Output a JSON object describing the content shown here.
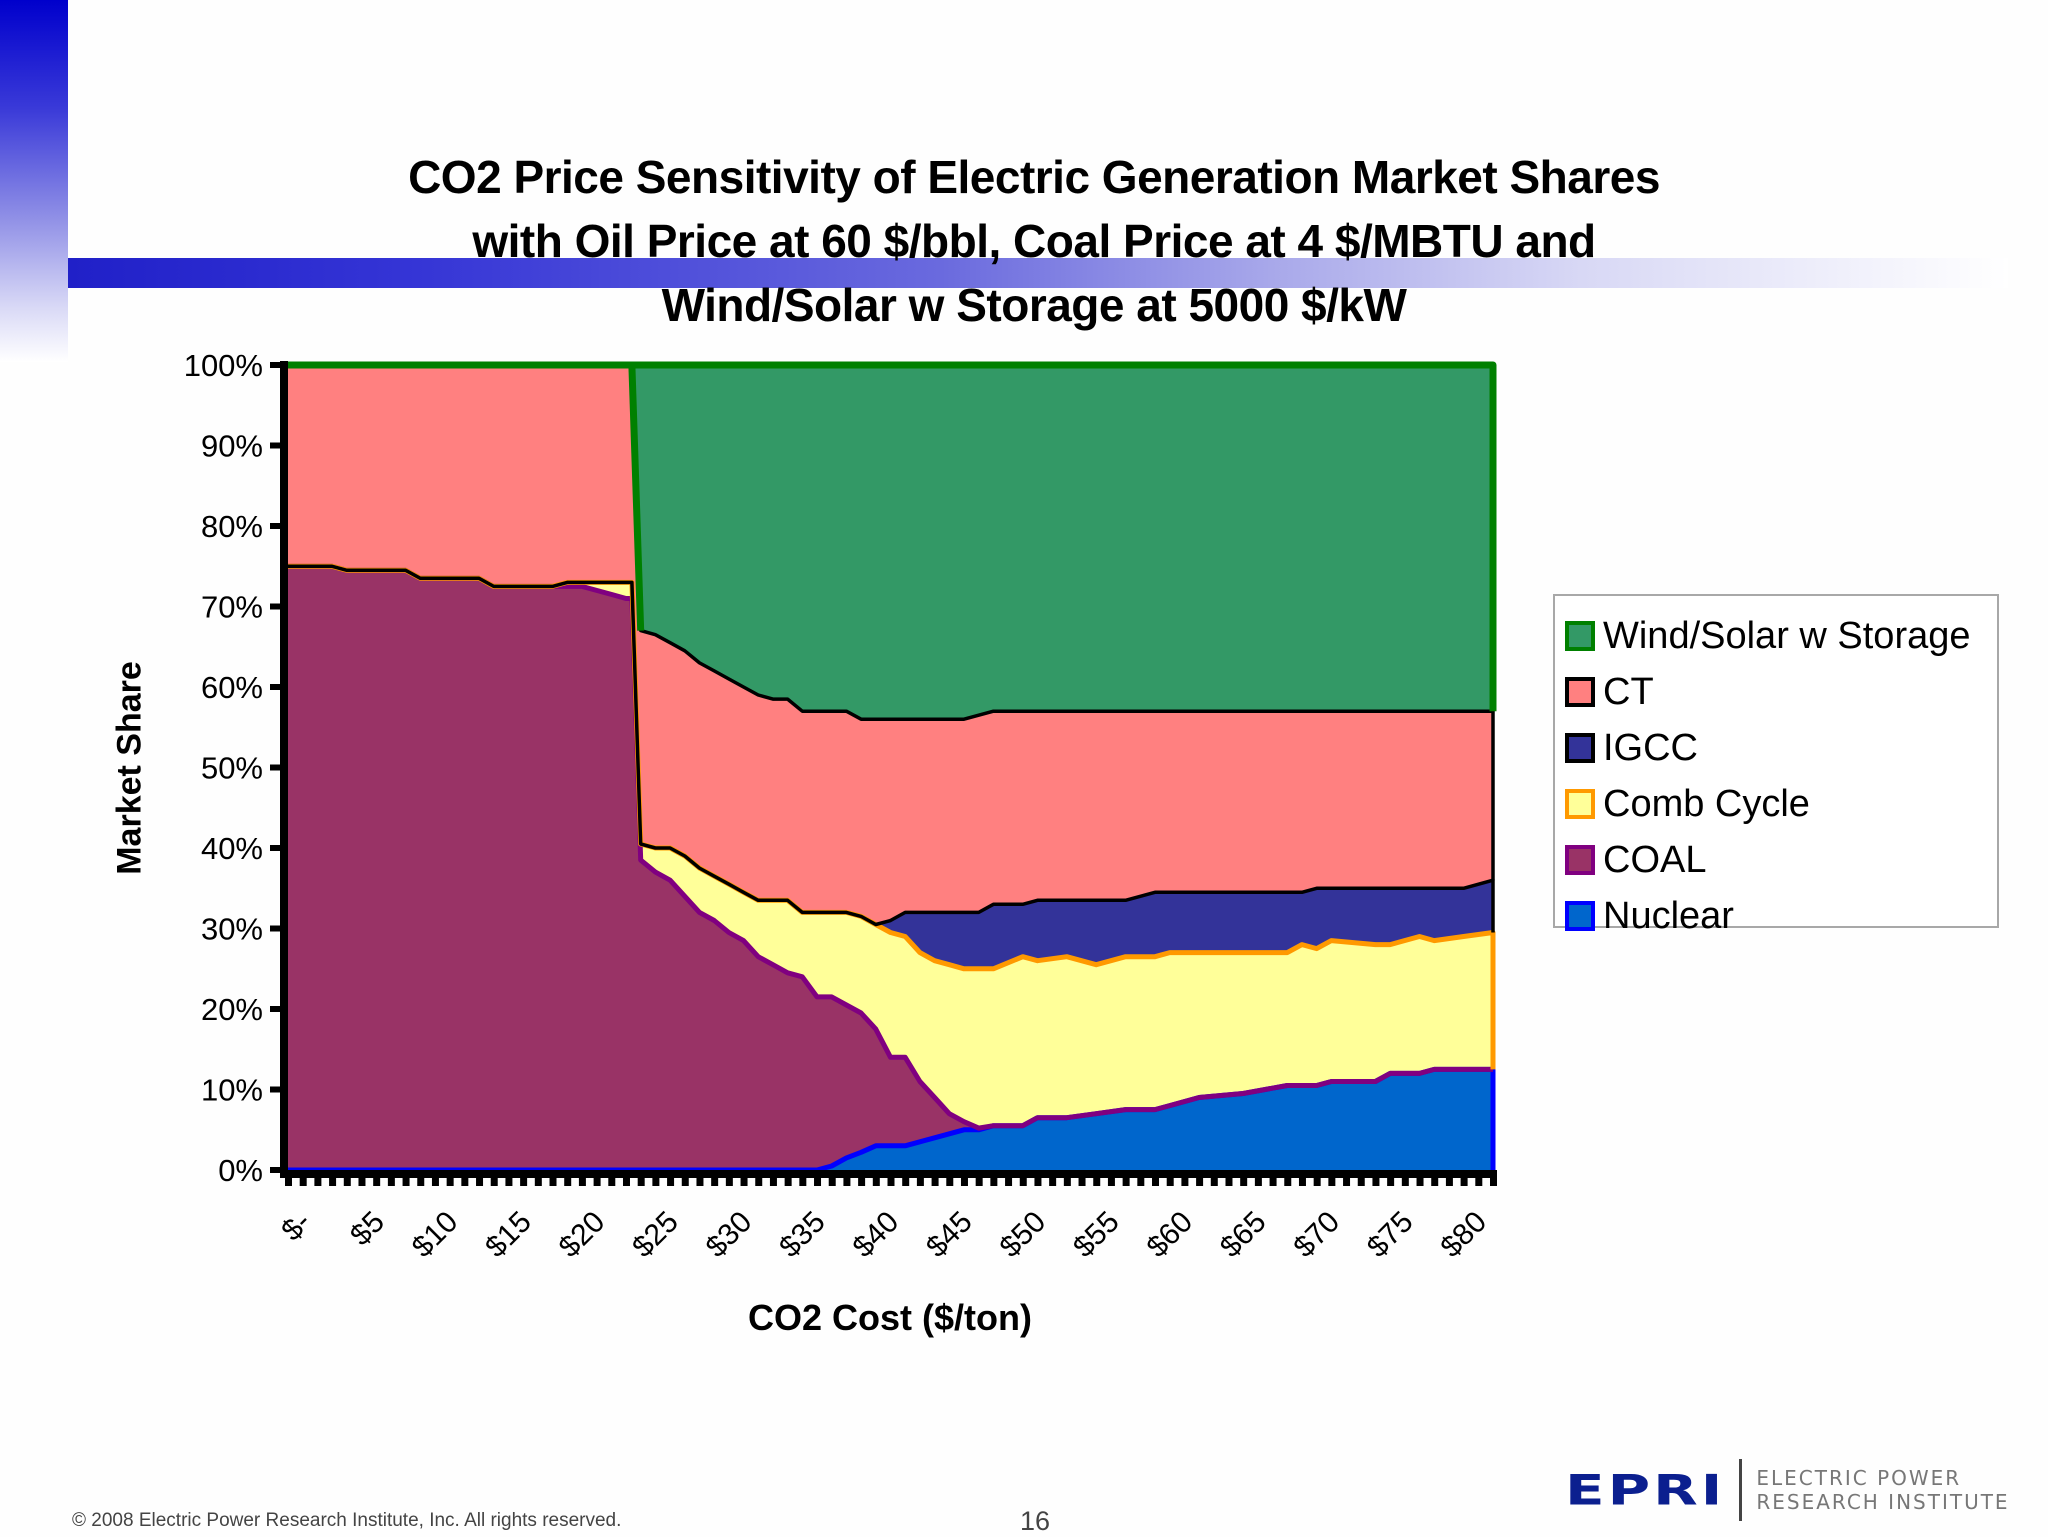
{
  "slide": {
    "footer": "© 2008 Electric Power Research Institute, Inc. All rights reserved.",
    "page_number": "16",
    "logo": {
      "mark": "EPRI",
      "line1": "ELECTRIC POWER",
      "line2": "RESEARCH INSTITUTE"
    }
  },
  "chart_data": {
    "type": "area",
    "stacked": true,
    "title": [
      "CO2 Price Sensitivity of Electric Generation Market Shares",
      "with Oil Price at 60 $/bbl, Coal Price at 4 $/MBTU and",
      "Wind/Solar w Storage at 5000 $/kW"
    ],
    "xlabel": "CO2 Cost ($/ton)",
    "ylabel": "Market Share",
    "xlim": [
      0,
      82
    ],
    "ylim": [
      0,
      100
    ],
    "y_ticks": [
      "0%",
      "10%",
      "20%",
      "30%",
      "40%",
      "50%",
      "60%",
      "70%",
      "80%",
      "90%",
      "100%"
    ],
    "x_tick_labels": [
      "$-",
      "$5",
      "$10",
      "$15",
      "$20",
      "$25",
      "$30",
      "$35",
      "$40",
      "$45",
      "$50",
      "$55",
      "$60",
      "$65",
      "$70",
      "$75",
      "$80"
    ],
    "x_tick_values": [
      0,
      5,
      10,
      15,
      20,
      25,
      30,
      35,
      40,
      45,
      50,
      55,
      60,
      65,
      70,
      75,
      80
    ],
    "legend_position": "right",
    "x": [
      0,
      3,
      4,
      8,
      9,
      13,
      14,
      18,
      19,
      20,
      21,
      22,
      23,
      23.4,
      24,
      25,
      26,
      27,
      28,
      29,
      30,
      31,
      32,
      33,
      34,
      35,
      36,
      37,
      38,
      39,
      40,
      41,
      42,
      43,
      44,
      45,
      46,
      47,
      48,
      50,
      51,
      53,
      55,
      57,
      59,
      60,
      62,
      65,
      68,
      69,
      70,
      71,
      74,
      75,
      77,
      78,
      80,
      82
    ],
    "series": [
      {
        "name": "Nuclear",
        "fill": "#0066cc",
        "stroke": "#0000ff",
        "values": [
          0,
          0,
          0,
          0,
          0,
          0,
          0,
          0,
          0,
          0,
          0,
          0,
          0,
          0,
          0,
          0,
          0,
          0,
          0,
          0,
          0,
          0,
          0,
          0,
          0,
          0,
          0,
          0.5,
          1.5,
          2.2,
          3,
          3,
          3,
          3.5,
          4,
          4.5,
          5,
          5,
          5.5,
          5.5,
          6.5,
          6.5,
          7,
          7.5,
          7.5,
          8,
          9,
          9.5,
          10.5,
          10.5,
          10.5,
          11,
          11,
          12,
          12,
          12.5,
          12.5,
          12.5
        ]
      },
      {
        "name": "COAL",
        "fill": "#993366",
        "stroke": "#800080",
        "values": [
          75,
          75,
          74.5,
          74.5,
          73.5,
          73.5,
          72.5,
          72.5,
          72.5,
          72.5,
          72,
          71.5,
          71,
          71,
          38.5,
          37,
          36,
          34,
          32,
          31,
          29.5,
          28.5,
          26.5,
          25.5,
          24.5,
          24,
          21.5,
          21,
          19,
          17.3,
          14.5,
          11,
          11,
          7.5,
          5,
          2.5,
          1,
          0.2,
          0,
          0,
          0,
          0,
          0,
          0,
          0,
          0,
          0,
          0,
          0,
          0,
          0,
          0,
          0,
          0,
          0,
          0,
          0,
          0
        ]
      },
      {
        "name": "Comb Cycle",
        "fill": "#ffff99",
        "stroke": "#ff9900",
        "values": [
          0,
          0,
          0,
          0,
          0,
          0,
          0,
          0,
          0.5,
          0.5,
          1,
          1.5,
          2,
          2,
          2,
          3,
          4,
          5,
          5.5,
          5.5,
          6,
          6,
          7,
          8,
          9,
          8,
          10.5,
          10.5,
          11.5,
          12,
          13,
          15.5,
          15,
          16,
          17,
          18.5,
          19,
          19.8,
          19.5,
          21,
          19.5,
          20,
          18.5,
          19,
          19,
          19,
          18,
          17.5,
          16.5,
          17.5,
          17,
          17.5,
          17,
          16,
          17,
          16,
          16.5,
          17
        ]
      },
      {
        "name": "IGCC",
        "fill": "#333399",
        "stroke": "#000000",
        "values": [
          0,
          0,
          0,
          0,
          0,
          0,
          0,
          0,
          0,
          0,
          0,
          0,
          0,
          0,
          0,
          0,
          0,
          0,
          0,
          0,
          0,
          0,
          0,
          0,
          0,
          0,
          0,
          0,
          0,
          0,
          0,
          1.5,
          3,
          5,
          6,
          6.5,
          7,
          7,
          8,
          6.5,
          7.5,
          7,
          8,
          7,
          8,
          7.5,
          7.5,
          7.5,
          7.5,
          6.5,
          7.5,
          6.5,
          7,
          7,
          6,
          6.5,
          6,
          6.5
        ]
      },
      {
        "name": "CT",
        "fill": "#ff8080",
        "stroke": "#000000",
        "values": [
          25,
          25,
          25.5,
          25.5,
          26.5,
          26.5,
          27.5,
          27.5,
          27,
          27,
          27,
          27,
          27,
          27,
          26.5,
          26.5,
          25.5,
          25.5,
          25.5,
          25.5,
          25.5,
          25.5,
          25.5,
          25,
          25,
          25,
          25,
          25,
          25,
          24.5,
          25.5,
          25,
          24,
          24,
          24,
          24,
          24,
          24.5,
          24,
          24,
          23.5,
          23.5,
          23.5,
          23.5,
          22.5,
          22.5,
          22.5,
          22.5,
          22.5,
          22.5,
          22,
          22,
          22,
          22,
          22,
          22,
          22,
          21
        ]
      },
      {
        "name": "Wind/Solar w Storage",
        "fill": "#339966",
        "stroke": "#008000",
        "values": [
          0,
          0,
          0,
          0,
          0,
          0,
          0,
          0,
          0,
          0,
          0,
          0,
          0,
          0,
          33,
          33.5,
          34.5,
          35.5,
          37,
          38,
          39,
          40,
          41,
          41.5,
          41.5,
          43,
          43,
          43,
          43,
          44,
          44,
          44,
          44,
          44,
          44,
          44,
          44,
          43.5,
          43,
          43,
          43,
          43,
          43,
          43,
          43,
          43,
          43,
          43,
          43,
          43,
          43,
          43,
          43,
          43,
          43,
          43,
          43,
          43
        ]
      }
    ]
  }
}
